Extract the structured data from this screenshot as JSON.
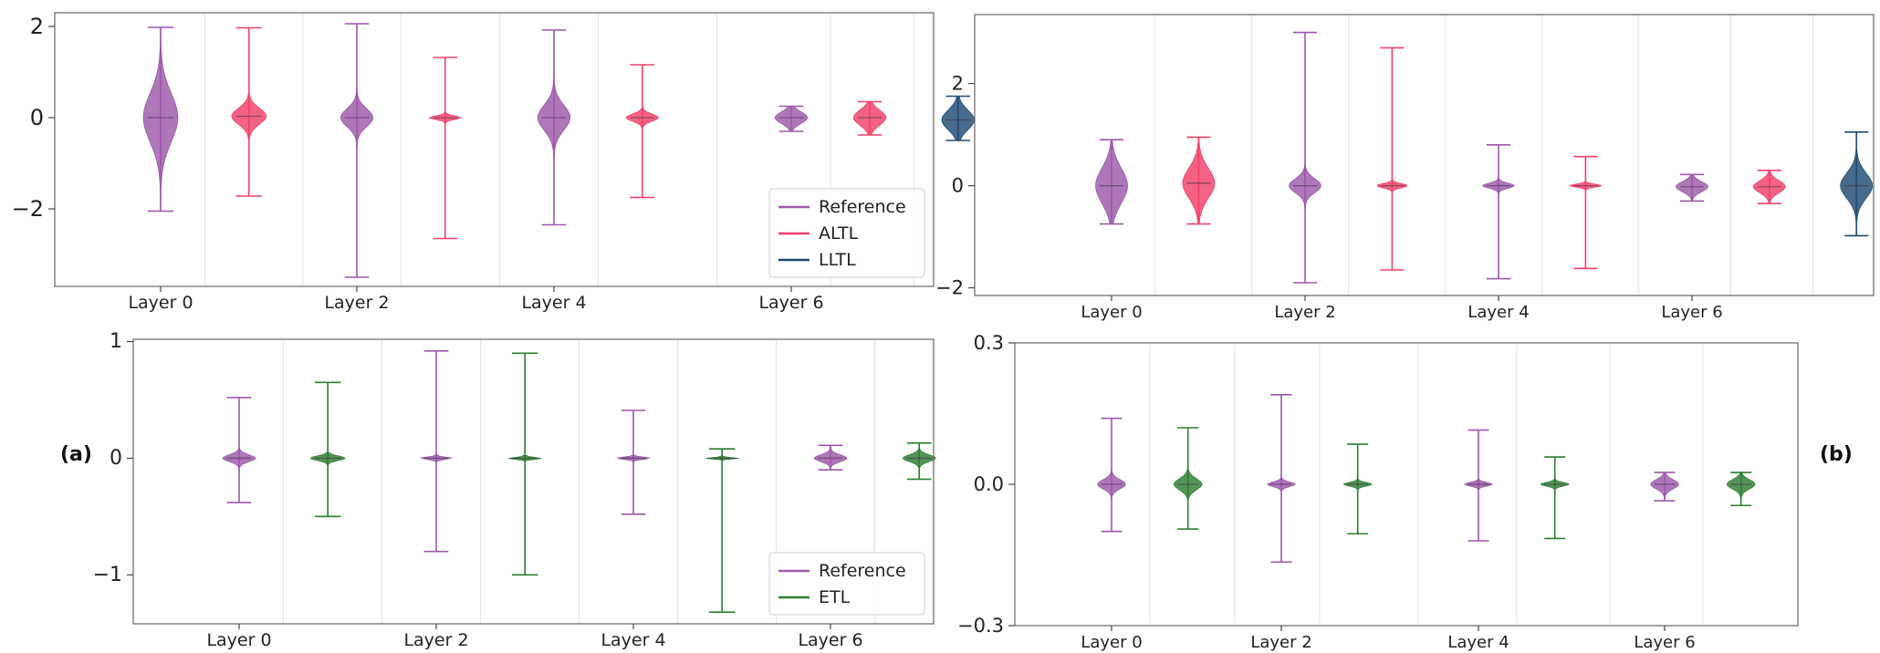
{
  "panel_labels": {
    "a": "(a)",
    "b": "(b)"
  },
  "colors": {
    "Reference": "#9b59a8",
    "ALTL": "#f2406a",
    "LLTL": "#1f4a72",
    "ETL": "#2e7d32"
  },
  "chart_data": [
    {
      "type": "violin",
      "id": "a-top",
      "categories": [
        "Layer 0",
        "Layer 2",
        "Layer 4",
        "Layer 6"
      ],
      "ylim": [
        -3.7,
        2.3
      ],
      "yticks": [
        {
          "v": 2,
          "label": "2"
        },
        {
          "v": 0,
          "label": "0"
        },
        {
          "v": -2,
          "label": "−2"
        }
      ],
      "legend": {
        "position": "lower-right",
        "entries": [
          "Reference",
          "ALTL",
          "LLTL"
        ]
      },
      "violins": [
        {
          "series": "Reference",
          "pos": 0,
          "min": -2.05,
          "max": 1.98,
          "median": 0.0,
          "spread": 0.55,
          "width": 0.32
        },
        {
          "series": "ALTL",
          "pos": 0.45,
          "min": -1.72,
          "max": 1.97,
          "median": 0.03,
          "spread": 0.18,
          "width": 0.32
        },
        {
          "series": "Reference",
          "pos": 1,
          "min": -3.5,
          "max": 2.06,
          "median": 0.0,
          "spread": 0.2,
          "width": 0.3
        },
        {
          "series": "ALTL",
          "pos": 1.45,
          "min": -2.65,
          "max": 1.32,
          "median": 0.0,
          "spread": 0.04,
          "width": 0.3
        },
        {
          "series": "Reference",
          "pos": 2,
          "min": -2.35,
          "max": 1.92,
          "median": 0.0,
          "spread": 0.28,
          "width": 0.3
        },
        {
          "series": "ALTL",
          "pos": 2.45,
          "min": -1.75,
          "max": 1.16,
          "median": 0.0,
          "spread": 0.08,
          "width": 0.3
        },
        {
          "series": "Reference",
          "pos": 3,
          "min": -0.3,
          "max": 0.25,
          "median": 0.0,
          "spread": 0.13,
          "width": 0.3
        },
        {
          "series": "ALTL",
          "pos": 3.4,
          "min": -0.38,
          "max": 0.35,
          "median": 0.0,
          "spread": 0.17,
          "width": 0.3
        },
        {
          "series": "LLTL",
          "pos": 3.85,
          "min": -0.5,
          "max": 0.47,
          "median": -0.05,
          "spread": 0.22,
          "width": 0.3
        }
      ]
    },
    {
      "type": "violin",
      "id": "b-top",
      "categories": [
        "Layer 0",
        "Layer 2",
        "Layer 4",
        "Layer 6"
      ],
      "ylim": [
        -2.15,
        3.35
      ],
      "yticks": [
        {
          "v": 2,
          "label": "2"
        },
        {
          "v": 0,
          "label": "0"
        },
        {
          "v": -2,
          "label": "−2"
        }
      ],
      "legend": null,
      "violins": [
        {
          "series": "Reference",
          "pos": 0,
          "min": -0.75,
          "max": 0.9,
          "median": 0.0,
          "spread": 0.35,
          "width": 0.3
        },
        {
          "series": "ALTL",
          "pos": 0.45,
          "min": -0.75,
          "max": 0.95,
          "median": 0.05,
          "spread": 0.3,
          "width": 0.3
        },
        {
          "series": "Reference",
          "pos": 1,
          "min": -1.9,
          "max": 3.0,
          "median": 0.0,
          "spread": 0.14,
          "width": 0.3
        },
        {
          "series": "ALTL",
          "pos": 1.45,
          "min": -1.65,
          "max": 2.7,
          "median": 0.0,
          "spread": 0.04,
          "width": 0.3
        },
        {
          "series": "Reference",
          "pos": 2,
          "min": -1.82,
          "max": 0.8,
          "median": 0.0,
          "spread": 0.05,
          "width": 0.3
        },
        {
          "series": "ALTL",
          "pos": 2.45,
          "min": -1.62,
          "max": 0.57,
          "median": 0.0,
          "spread": 0.03,
          "width": 0.3
        },
        {
          "series": "Reference",
          "pos": 3,
          "min": -0.3,
          "max": 0.22,
          "median": -0.02,
          "spread": 0.1,
          "width": 0.3
        },
        {
          "series": "ALTL",
          "pos": 3.4,
          "min": -0.35,
          "max": 0.3,
          "median": -0.02,
          "spread": 0.12,
          "width": 0.3
        },
        {
          "series": "LLTL",
          "pos": 3.85,
          "min": -0.98,
          "max": 1.05,
          "median": 0.0,
          "spread": 0.25,
          "width": 0.3
        }
      ]
    },
    {
      "type": "violin",
      "id": "a-bottom",
      "categories": [
        "Layer 0",
        "Layer 2",
        "Layer 4",
        "Layer 6"
      ],
      "ylim": [
        -1.42,
        1.02
      ],
      "yticks": [
        {
          "v": 1,
          "label": "1"
        },
        {
          "v": 0,
          "label": "0"
        },
        {
          "v": -1,
          "label": "−1"
        }
      ],
      "legend": {
        "position": "lower-right",
        "entries": [
          "Reference",
          "ETL"
        ]
      },
      "violins": [
        {
          "series": "Reference",
          "pos": 0,
          "min": -0.38,
          "max": 0.52,
          "median": 0.0,
          "spread": 0.03,
          "width": 0.3
        },
        {
          "series": "ETL",
          "pos": 0.45,
          "min": -0.5,
          "max": 0.65,
          "median": 0.0,
          "spread": 0.02,
          "width": 0.32
        },
        {
          "series": "Reference",
          "pos": 1,
          "min": -0.8,
          "max": 0.92,
          "median": 0.0,
          "spread": 0.01,
          "width": 0.3
        },
        {
          "series": "ETL",
          "pos": 1.45,
          "min": -1.0,
          "max": 0.9,
          "median": 0.0,
          "spread": 0.008,
          "width": 0.32
        },
        {
          "series": "Reference",
          "pos": 2,
          "min": -0.48,
          "max": 0.41,
          "median": 0.0,
          "spread": 0.01,
          "width": 0.3
        },
        {
          "series": "ETL",
          "pos": 2.45,
          "min": -1.32,
          "max": 0.08,
          "median": 0.0,
          "spread": 0.006,
          "width": 0.32
        },
        {
          "series": "Reference",
          "pos": 3,
          "min": -0.1,
          "max": 0.11,
          "median": 0.0,
          "spread": 0.03,
          "width": 0.3
        },
        {
          "series": "ETL",
          "pos": 3.45,
          "min": -0.18,
          "max": 0.13,
          "median": 0.0,
          "spread": 0.03,
          "width": 0.3
        }
      ]
    },
    {
      "type": "violin",
      "id": "b-bottom",
      "categories": [
        "Layer 0",
        "Layer 2",
        "Layer 4",
        "Layer 6"
      ],
      "ylim": [
        -0.3,
        0.3
      ],
      "yticks": [
        {
          "v": 0.3,
          "label": "0.3"
        },
        {
          "v": 0.0,
          "label": "0.0"
        },
        {
          "v": -0.3,
          "label": "−0.3"
        }
      ],
      "legend": null,
      "violins": [
        {
          "series": "Reference",
          "pos": 0,
          "min": -0.1,
          "max": 0.14,
          "median": 0.0,
          "spread": 0.01,
          "width": 0.3
        },
        {
          "series": "ETL",
          "pos": 0.45,
          "min": -0.095,
          "max": 0.12,
          "median": 0.0,
          "spread": 0.012,
          "width": 0.3
        },
        {
          "series": "Reference",
          "pos": 1,
          "min": -0.165,
          "max": 0.19,
          "median": 0.0,
          "spread": 0.005,
          "width": 0.3
        },
        {
          "series": "ETL",
          "pos": 1.45,
          "min": -0.105,
          "max": 0.085,
          "median": 0.0,
          "spread": 0.004,
          "width": 0.3
        },
        {
          "series": "Reference",
          "pos": 2,
          "min": -0.12,
          "max": 0.115,
          "median": 0.0,
          "spread": 0.004,
          "width": 0.3
        },
        {
          "series": "ETL",
          "pos": 2.45,
          "min": -0.115,
          "max": 0.058,
          "median": 0.0,
          "spread": 0.004,
          "width": 0.3
        },
        {
          "series": "Reference",
          "pos": 3,
          "min": -0.035,
          "max": 0.025,
          "median": 0.0,
          "spread": 0.01,
          "width": 0.3
        },
        {
          "series": "ETL",
          "pos": 3.45,
          "min": -0.045,
          "max": 0.025,
          "median": 0.0,
          "spread": 0.01,
          "width": 0.3
        }
      ]
    }
  ]
}
